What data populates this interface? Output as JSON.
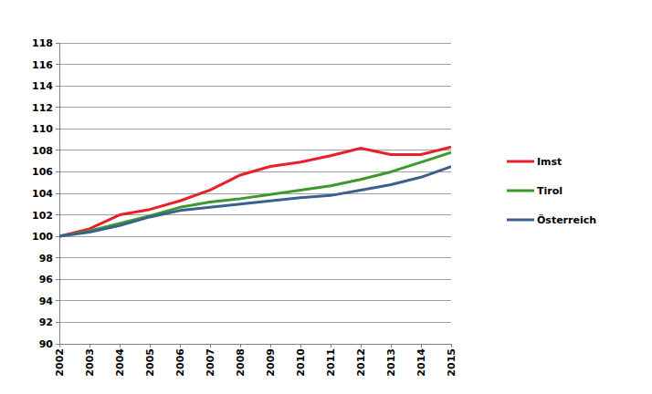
{
  "chart_data": {
    "type": "line",
    "x": [
      2002,
      2003,
      2004,
      2005,
      2006,
      2007,
      2008,
      2009,
      2010,
      2011,
      2012,
      2013,
      2014,
      2015
    ],
    "xlim": [
      2002,
      2015
    ],
    "xticks": [
      2002,
      2003,
      2004,
      2005,
      2006,
      2007,
      2008,
      2009,
      2010,
      2011,
      2012,
      2013,
      2014,
      2015
    ],
    "ylim": [
      90,
      118
    ],
    "yticks": [
      90,
      92,
      94,
      96,
      98,
      100,
      102,
      104,
      106,
      108,
      110,
      112,
      114,
      116,
      118
    ],
    "grid": true,
    "legend": "right",
    "series": [
      {
        "name": "Imst",
        "color": "#e8202a",
        "values": [
          100,
          100.7,
          102.0,
          102.5,
          103.3,
          104.3,
          105.7,
          106.5,
          106.9,
          107.5,
          108.2,
          107.6,
          107.6,
          108.3
        ]
      },
      {
        "name": "Tirol",
        "color": "#3c9a2d",
        "values": [
          100,
          100.5,
          101.2,
          101.9,
          102.7,
          103.2,
          103.5,
          103.9,
          104.3,
          104.7,
          105.3,
          106.0,
          106.9,
          107.8
        ]
      },
      {
        "name": "Österreich",
        "color": "#3d5f8e",
        "values": [
          100,
          100.4,
          101.0,
          101.8,
          102.4,
          102.7,
          103.0,
          103.3,
          103.6,
          103.8,
          104.3,
          104.8,
          105.5,
          106.5
        ]
      }
    ]
  }
}
